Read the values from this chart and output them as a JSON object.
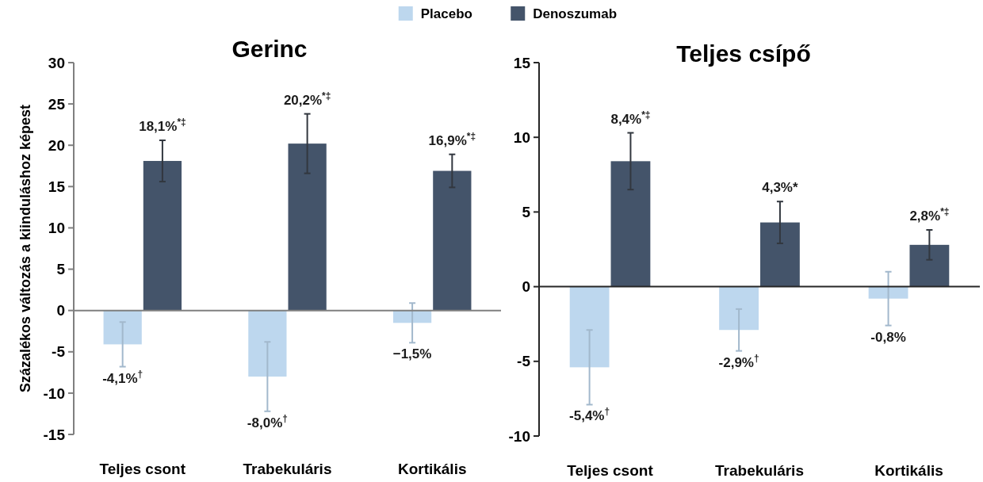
{
  "chart_data": [
    {
      "type": "bar",
      "title": "Gerinc",
      "ylabel": "Százalékos változás a kiinduláshoz képest",
      "categories": [
        "Teljes csont",
        "Trabekuláris",
        "Kortikális"
      ],
      "series": [
        {
          "name": "Placebo",
          "color": "#bdd7ee",
          "values": [
            -4.1,
            -8.0,
            -1.5
          ],
          "errors": [
            2.7,
            4.2,
            2.4
          ],
          "value_labels": [
            "-4,1%$^{†}$",
            "-8,0%$^{†}$",
            "−1,5%"
          ]
        },
        {
          "name": "Denoszumab",
          "color": "#44546a",
          "values": [
            18.1,
            20.2,
            16.9
          ],
          "errors": [
            2.5,
            3.6,
            2.0
          ],
          "value_labels": [
            "18,1%$^{*‡}$",
            "20,2%$^{*‡}$",
            "16,9%$^{*‡}$"
          ]
        }
      ],
      "ylim": [
        -15,
        30
      ],
      "yticks": [
        -15,
        -10,
        -5,
        0,
        5,
        10,
        15,
        20,
        25,
        30
      ],
      "legend": "top"
    },
    {
      "type": "bar",
      "title": "Teljes csípő",
      "categories": [
        "Teljes csont",
        "Trabekuláris",
        "Kortikális"
      ],
      "series": [
        {
          "color": "#bdd7ee",
          "values": [
            -5.4,
            -2.9,
            -0.8
          ],
          "errors": [
            2.5,
            1.4,
            1.8
          ],
          "value_labels": [
            "-5,4%$^{†}$",
            "-2,9%$^{†}$",
            "-0,8%"
          ]
        },
        {
          "color": "#44546a",
          "values": [
            8.4,
            4.3,
            2.8
          ],
          "errors": [
            1.9,
            1.4,
            1.0
          ],
          "value_labels": [
            "8,4%$^{*‡}$",
            "4,3%*",
            "2,8%$^{*‡}$"
          ]
        }
      ],
      "ylim": [
        -10,
        15
      ],
      "yticks": [
        -10,
        -5,
        0,
        5,
        10,
        15
      ]
    }
  ]
}
